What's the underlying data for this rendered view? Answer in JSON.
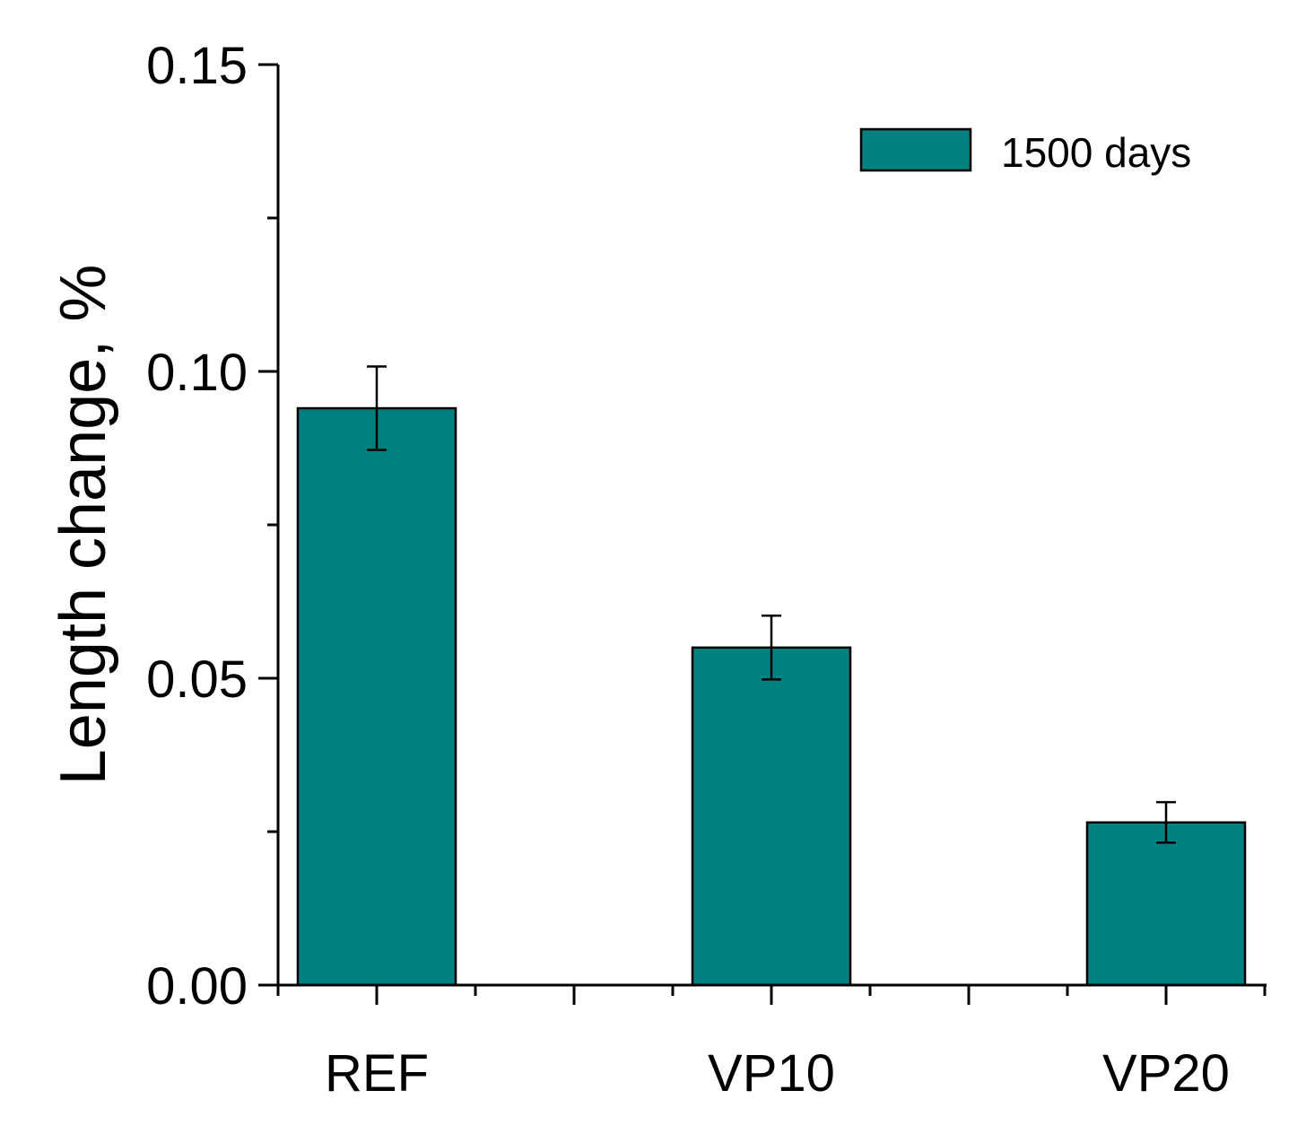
{
  "chart_data": {
    "type": "bar",
    "categories": [
      "REF",
      "VP10",
      "VP20"
    ],
    "series": [
      {
        "name": "1500 days",
        "values": [
          0.094,
          0.055,
          0.0265
        ],
        "error": [
          0.0068,
          0.0052,
          0.0033
        ]
      }
    ],
    "title": "",
    "xlabel": "",
    "ylabel": "Length change, %",
    "ylim": [
      0,
      0.15
    ],
    "yticks": [
      "0.00",
      "0.05",
      "0.10",
      "0.15"
    ],
    "yminor_step": 0.025,
    "bar_color": "#008080",
    "legend_position": "top-right",
    "grid": false
  }
}
